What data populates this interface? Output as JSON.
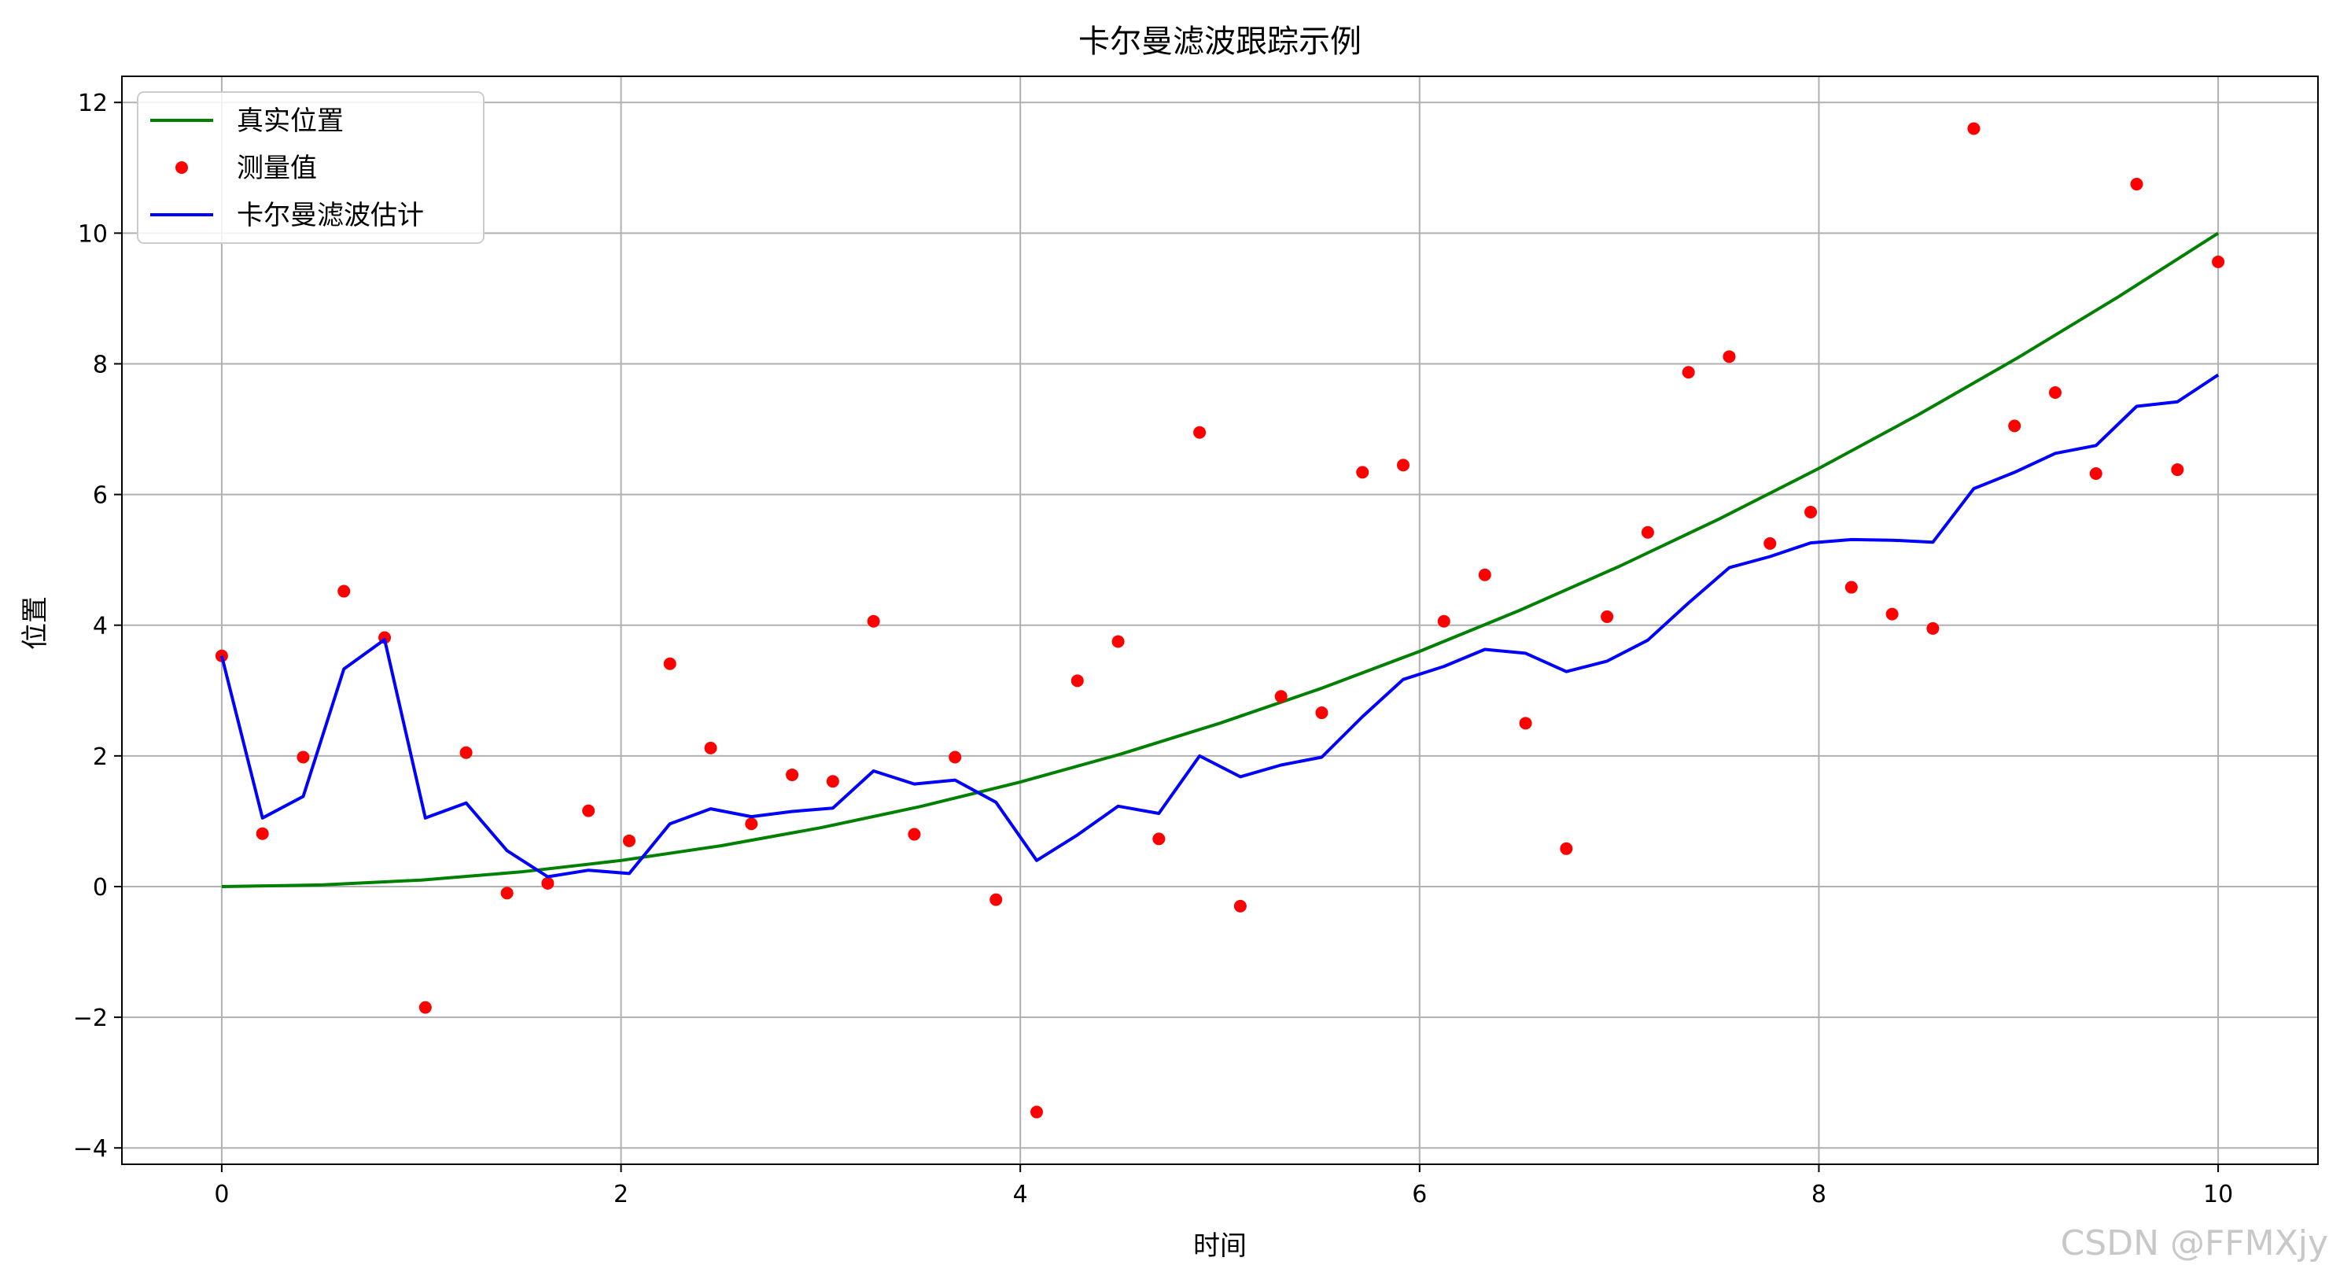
{
  "chart_data": {
    "type": "line",
    "title": "卡尔曼滤波跟踪示例",
    "xlabel": "时间",
    "ylabel": "位置",
    "xlim": [
      -0.5,
      10.5
    ],
    "ylim": [
      -4.25,
      12.4
    ],
    "xticks": [
      0,
      2,
      4,
      6,
      8,
      10
    ],
    "yticks": [
      -4,
      -2,
      0,
      2,
      4,
      6,
      8,
      10,
      12
    ],
    "grid": true,
    "legend_position": "top-left",
    "series": [
      {
        "name": "真实位置",
        "kind": "line",
        "color": "#008000",
        "x": [
          0,
          0.5,
          1,
          1.5,
          2,
          2.5,
          3,
          3.5,
          4,
          4.5,
          5,
          5.5,
          6,
          6.5,
          7,
          7.5,
          8,
          8.5,
          9,
          9.5,
          10
        ],
        "y": [
          0,
          0.025,
          0.1,
          0.225,
          0.4,
          0.625,
          0.9,
          1.225,
          1.6,
          2.025,
          2.5,
          3.025,
          3.6,
          4.225,
          4.9,
          5.625,
          6.4,
          7.225,
          8.1,
          9.025,
          10
        ]
      },
      {
        "name": "测量值",
        "kind": "scatter",
        "color": "#ff0000",
        "x": [
          0,
          0.204,
          0.408,
          0.612,
          0.816,
          1.02,
          1.224,
          1.429,
          1.633,
          1.837,
          2.041,
          2.245,
          2.449,
          2.653,
          2.857,
          3.061,
          3.265,
          3.469,
          3.673,
          3.878,
          4.082,
          4.286,
          4.49,
          4.694,
          4.898,
          5.102,
          5.306,
          5.51,
          5.714,
          5.918,
          6.122,
          6.327,
          6.531,
          6.735,
          6.939,
          7.143,
          7.347,
          7.551,
          7.755,
          7.959,
          8.163,
          8.367,
          8.571,
          8.776,
          8.98,
          9.184,
          9.388,
          9.592,
          9.796,
          10
        ],
        "y": [
          3.53,
          0.81,
          1.98,
          4.52,
          3.81,
          -1.85,
          2.05,
          -0.1,
          0.05,
          1.16,
          0.7,
          3.41,
          2.12,
          0.96,
          1.71,
          1.61,
          4.06,
          0.8,
          1.98,
          -0.2,
          -3.45,
          3.15,
          3.75,
          0.73,
          6.95,
          -0.3,
          2.91,
          2.66,
          6.34,
          6.45,
          4.06,
          4.77,
          2.5,
          0.58,
          4.13,
          5.42,
          7.87,
          8.11,
          5.25,
          5.73,
          4.58,
          4.17,
          3.95,
          11.6,
          7.05,
          7.56,
          6.32,
          10.75,
          6.38,
          9.56
        ]
      },
      {
        "name": "卡尔曼滤波估计",
        "kind": "line",
        "color": "#0000ff",
        "x": [
          0,
          0.204,
          0.408,
          0.612,
          0.816,
          1.02,
          1.224,
          1.429,
          1.633,
          1.837,
          2.041,
          2.245,
          2.449,
          2.653,
          2.857,
          3.061,
          3.265,
          3.469,
          3.673,
          3.878,
          4.082,
          4.286,
          4.49,
          4.694,
          4.898,
          5.102,
          5.306,
          5.51,
          5.714,
          5.918,
          6.122,
          6.327,
          6.531,
          6.735,
          6.939,
          7.143,
          7.347,
          7.551,
          7.755,
          7.959,
          8.163,
          8.367,
          8.571,
          8.776,
          8.98,
          9.184,
          9.388,
          9.592,
          9.796,
          10
        ],
        "y": [
          3.53,
          1.05,
          1.38,
          3.33,
          3.78,
          1.05,
          1.28,
          0.55,
          0.15,
          0.25,
          0.2,
          0.96,
          1.19,
          1.07,
          1.15,
          1.2,
          1.77,
          1.57,
          1.63,
          1.29,
          0.4,
          0.79,
          1.23,
          1.12,
          2.0,
          1.68,
          1.86,
          1.98,
          2.6,
          3.17,
          3.37,
          3.63,
          3.57,
          3.29,
          3.45,
          3.77,
          4.34,
          4.88,
          5.05,
          5.26,
          5.31,
          5.3,
          5.27,
          6.09,
          6.34,
          6.63,
          6.75,
          7.35,
          7.42,
          7.83
        ]
      }
    ]
  },
  "watermark": "CSDN @FFMXjy"
}
